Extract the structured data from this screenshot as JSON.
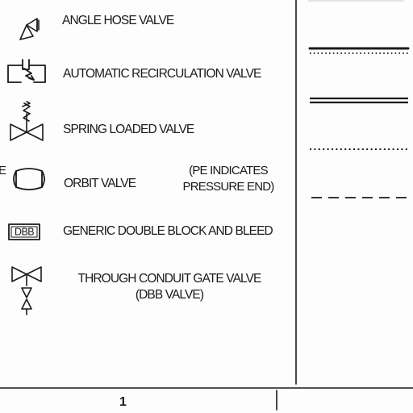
{
  "legend": {
    "items": [
      {
        "icon": "angle-hose-valve-icon",
        "label": "ANGLE HOSE VALVE"
      },
      {
        "icon": "automatic-recirculation-valve-icon",
        "label": "AUTOMATIC RECIRCULATION VALVE"
      },
      {
        "icon": "spring-loaded-valve-icon",
        "label": "SPRING LOADED VALVE"
      },
      {
        "icon": "orbit-valve-icon",
        "label": "ORBIT VALVE",
        "note_line1": "(PE INDICATES",
        "note_line2": "PRESSURE END)",
        "edge_letter": "E"
      },
      {
        "icon": "dbb-box-icon",
        "label": "GENERIC DOUBLE BLOCK AND BLEED",
        "box_text": "DBB"
      },
      {
        "icon": "through-conduit-gate-valve-icon",
        "label_line1": "THROUGH CONDUIT GATE VALVE",
        "label_line2": "(DBB VALVE)"
      }
    ]
  },
  "line_styles": [
    {
      "icon": "double-line-solid-over-dotted-icon"
    },
    {
      "icon": "double-solid-line-icon"
    },
    {
      "icon": "dotted-line-icon"
    },
    {
      "icon": "dashed-line-icon"
    }
  ],
  "footer": {
    "page_number": "1"
  }
}
